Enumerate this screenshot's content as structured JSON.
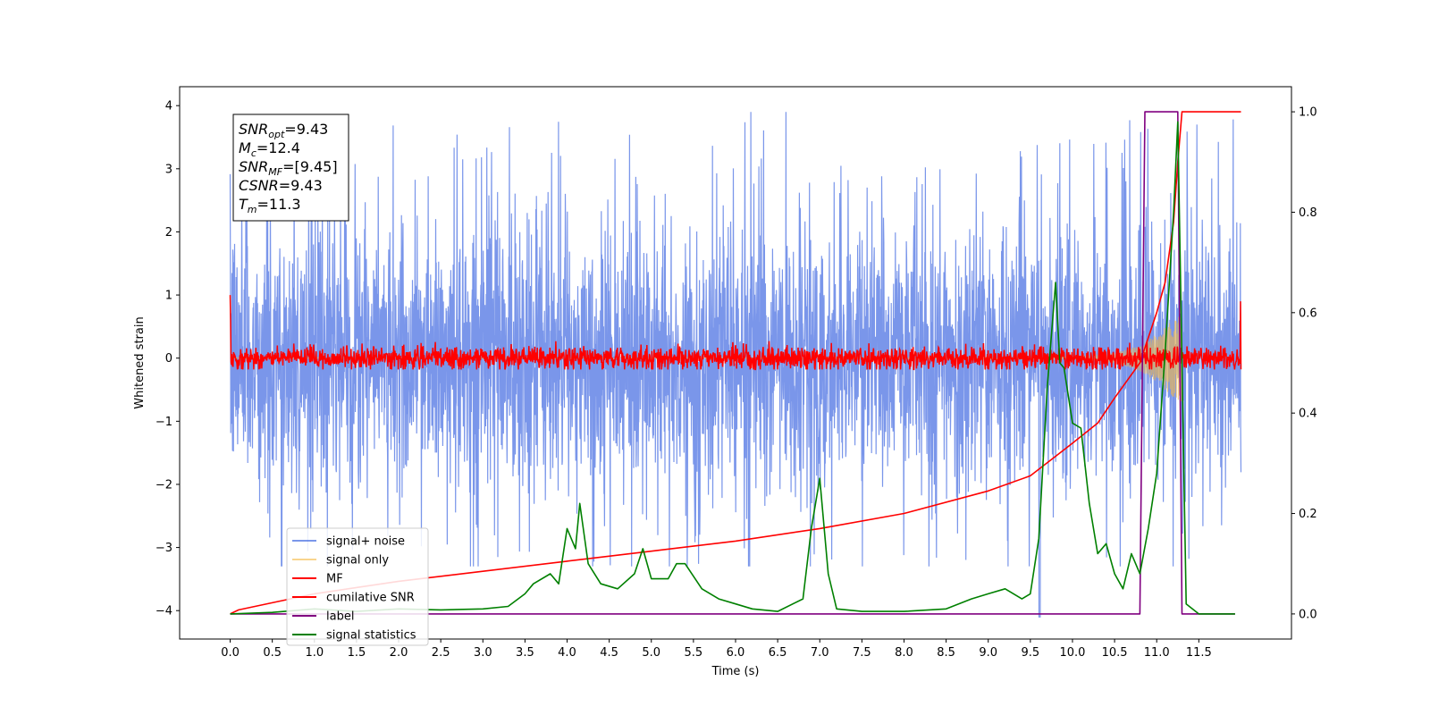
{
  "chart_data": {
    "type": "line",
    "xlabel": "Time (s)",
    "ylabel": "Whitened strain",
    "y2label": "",
    "xlim": [
      -0.6,
      12.6
    ],
    "ylim": [
      -4.45,
      4.3
    ],
    "y2lim": [
      -0.05,
      1.05
    ],
    "x_ticks": [
      "0.0",
      "0.5",
      "1.0",
      "1.5",
      "2.0",
      "2.5",
      "3.0",
      "3.5",
      "4.0",
      "4.5",
      "5.0",
      "5.5",
      "6.0",
      "6.5",
      "7.0",
      "7.5",
      "8.0",
      "8.5",
      "9.0",
      "9.5",
      "10.0",
      "10.5",
      "11.0",
      "11.5"
    ],
    "y_ticks": [
      "4",
      "3",
      "2",
      "1",
      "0",
      "−1",
      "−2",
      "−3",
      "−4"
    ],
    "y_tick_values": [
      4,
      3,
      2,
      1,
      0,
      -1,
      -2,
      -3,
      -4
    ],
    "y2_ticks": [
      "1.0",
      "0.8",
      "0.6",
      "0.4",
      "0.2",
      "0.0"
    ],
    "y2_tick_values": [
      1.0,
      0.8,
      0.6,
      0.4,
      0.2,
      0.0
    ],
    "grid": false,
    "legend_position": "lower-left",
    "annotation": [
      {
        "sym": "SNR",
        "sub": "opt",
        "value": "=9.43"
      },
      {
        "sym": "M",
        "sub": "c",
        "value": "=12.4"
      },
      {
        "sym": "SNR",
        "sub": "MF",
        "value": "=[9.45]"
      },
      {
        "sym": "CSNR",
        "sub": "",
        "value": "=9.43"
      },
      {
        "sym": "T",
        "sub": "m",
        "value": "=11.3"
      }
    ],
    "series": [
      {
        "name": "signal+ noise",
        "axis": "left",
        "color": "#4169e1",
        "opacity": 0.7,
        "x_range": [
          0.0,
          12.0
        ],
        "noise_std": 1.05,
        "spike_max": 3.9,
        "spike_min": -3.3
      },
      {
        "name": "signal only",
        "axis": "left",
        "color": "#f5b942",
        "opacity": 0.6,
        "x_range": [
          0.0,
          11.3
        ],
        "amplitude_envelope": {
          "x": [
            0.0,
            10.0,
            10.5,
            10.8,
            11.0,
            11.2,
            11.3
          ],
          "y": [
            0.005,
            0.02,
            0.08,
            0.2,
            0.38,
            0.62,
            0.7
          ]
        }
      },
      {
        "name": "MF",
        "axis": "left",
        "color": "#ff0000",
        "x_range": [
          0.0,
          12.0
        ],
        "noise_std": 0.09,
        "endpoints": {
          "start": [
            1.0,
            0.6
          ],
          "end": [
            0.9,
            0.0
          ]
        }
      },
      {
        "name": "cumilative SNR",
        "axis": "right",
        "color": "#ff0000",
        "x": [
          0.0,
          0.1,
          1.0,
          2.0,
          3.0,
          4.0,
          5.0,
          6.0,
          7.0,
          8.0,
          9.0,
          9.5,
          10.0,
          10.3,
          10.5,
          10.8,
          11.0,
          11.1,
          11.2,
          11.25,
          11.3,
          12.0
        ],
        "y": [
          0.0,
          0.008,
          0.04,
          0.065,
          0.085,
          0.105,
          0.125,
          0.145,
          0.17,
          0.2,
          0.245,
          0.275,
          0.34,
          0.38,
          0.43,
          0.5,
          0.6,
          0.66,
          0.78,
          0.9,
          1.0,
          1.0
        ]
      },
      {
        "name": "label",
        "axis": "right",
        "color": "#800080",
        "x": [
          0.0,
          10.8,
          10.86,
          11.25,
          11.3,
          11.93
        ],
        "y": [
          0.0,
          0.0,
          1.0,
          1.0,
          0.0,
          0.0
        ]
      },
      {
        "name": "signal statistics",
        "axis": "right",
        "color": "#008000",
        "x": [
          0.0,
          0.5,
          1.0,
          1.5,
          2.0,
          2.5,
          3.0,
          3.3,
          3.5,
          3.6,
          3.8,
          3.9,
          4.0,
          4.1,
          4.15,
          4.25,
          4.4,
          4.6,
          4.8,
          4.9,
          5.0,
          5.2,
          5.3,
          5.4,
          5.6,
          5.8,
          6.0,
          6.2,
          6.5,
          6.8,
          6.9,
          7.0,
          7.1,
          7.2,
          7.5,
          8.0,
          8.5,
          8.8,
          9.0,
          9.2,
          9.4,
          9.5,
          9.6,
          9.7,
          9.8,
          9.85,
          9.9,
          10.0,
          10.1,
          10.2,
          10.3,
          10.4,
          10.5,
          10.6,
          10.7,
          10.8,
          10.9,
          11.0,
          11.1,
          11.2,
          11.25,
          11.3,
          11.35,
          11.5,
          11.93
        ],
        "y": [
          0.0,
          0.003,
          0.01,
          0.005,
          0.01,
          0.008,
          0.01,
          0.015,
          0.04,
          0.06,
          0.08,
          0.06,
          0.17,
          0.13,
          0.22,
          0.1,
          0.06,
          0.05,
          0.08,
          0.13,
          0.07,
          0.07,
          0.1,
          0.1,
          0.05,
          0.03,
          0.02,
          0.01,
          0.005,
          0.03,
          0.17,
          0.27,
          0.08,
          0.01,
          0.005,
          0.005,
          0.01,
          0.03,
          0.04,
          0.05,
          0.03,
          0.04,
          0.15,
          0.45,
          0.66,
          0.5,
          0.49,
          0.38,
          0.37,
          0.22,
          0.12,
          0.14,
          0.08,
          0.05,
          0.12,
          0.08,
          0.17,
          0.28,
          0.52,
          0.8,
          0.98,
          0.5,
          0.02,
          0.0,
          0.0
        ]
      }
    ]
  }
}
